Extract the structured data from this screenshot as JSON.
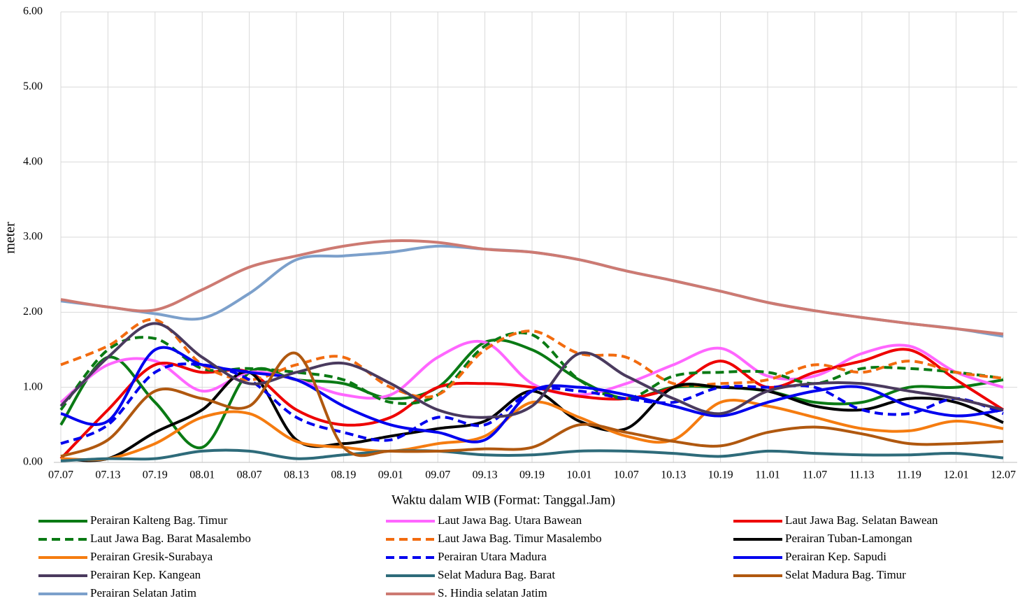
{
  "chart_data": {
    "type": "line",
    "y_label": "meter",
    "x_label": "Waktu dalam WIB (Format: Tanggal.Jam)",
    "categories": [
      "07.07",
      "07.13",
      "07.19",
      "08.01",
      "08.07",
      "08.13",
      "08.19",
      "09.01",
      "09.07",
      "09.13",
      "09.19",
      "10.01",
      "10.07",
      "10.13",
      "10.19",
      "11.01",
      "11.07",
      "11.13",
      "11.19",
      "12.01",
      "12.07"
    ],
    "ylim": [
      0,
      6
    ],
    "yticks": [
      {
        "value": 0,
        "label": "0.00"
      },
      {
        "value": 1,
        "label": "1.00"
      },
      {
        "value": 2,
        "label": "2.00"
      },
      {
        "value": 3,
        "label": "3.00"
      },
      {
        "value": 4,
        "label": "4.00"
      },
      {
        "value": 5,
        "label": "5.00"
      },
      {
        "value": 6,
        "label": "6.00"
      }
    ],
    "grid": true,
    "smooth": true,
    "series": [
      {
        "name": "Perairan Kalteng Bag. Timur",
        "color": "#0a7a14",
        "dash": false,
        "values": [
          0.5,
          1.4,
          0.8,
          0.2,
          1.2,
          1.1,
          1.05,
          0.85,
          1.0,
          1.6,
          1.5,
          1.1,
          0.85,
          1.0,
          1.0,
          0.95,
          0.8,
          0.8,
          1.0,
          1.0,
          1.1
        ]
      },
      {
        "name": "Laut Jawa Bag. Utara Bawean",
        "color": "#ff66ff",
        "dash": false,
        "values": [
          0.8,
          1.3,
          1.35,
          0.95,
          1.2,
          1.1,
          0.9,
          0.9,
          1.4,
          1.6,
          1.05,
          0.9,
          1.05,
          1.3,
          1.52,
          1.15,
          1.15,
          1.45,
          1.55,
          1.2,
          1.0
        ]
      },
      {
        "name": "Laut Jawa Bag. Selatan Bawean",
        "color": "#ee0000",
        "dash": false,
        "values": [
          0.05,
          0.7,
          1.3,
          1.2,
          1.2,
          0.7,
          0.5,
          0.6,
          1.0,
          1.05,
          1.0,
          0.88,
          0.85,
          1.0,
          1.35,
          1.0,
          1.2,
          1.35,
          1.5,
          1.1,
          0.7
        ]
      },
      {
        "name": "Laut Jawa Bag. Barat Masalembo",
        "color": "#0a7a14",
        "dash": true,
        "values": [
          0.7,
          1.5,
          1.65,
          1.25,
          1.25,
          1.2,
          1.1,
          0.8,
          0.9,
          1.55,
          1.7,
          1.1,
          0.85,
          1.15,
          1.2,
          1.2,
          1.05,
          1.25,
          1.25,
          1.2,
          1.12
        ]
      },
      {
        "name": "Laut Jawa Bag. Timur Masalembo",
        "color": "#f26b0f",
        "dash": true,
        "values": [
          1.3,
          1.55,
          1.9,
          1.3,
          1.1,
          1.3,
          1.4,
          1.0,
          0.9,
          1.5,
          1.75,
          1.45,
          1.4,
          1.05,
          1.05,
          1.1,
          1.3,
          1.2,
          1.35,
          1.2,
          1.12
        ]
      },
      {
        "name": "Perairan Tuban-Lamongan",
        "color": "#000000",
        "dash": false,
        "values": [
          0.05,
          0.05,
          0.4,
          0.7,
          1.2,
          0.3,
          0.25,
          0.35,
          0.45,
          0.55,
          0.95,
          0.55,
          0.45,
          1.0,
          1.0,
          0.95,
          0.75,
          0.7,
          0.85,
          0.8,
          0.53
        ]
      },
      {
        "name": "Perairan Gresik-Surabaya",
        "color": "#f57c10",
        "dash": false,
        "values": [
          0.05,
          0.05,
          0.25,
          0.6,
          0.65,
          0.28,
          0.2,
          0.15,
          0.25,
          0.35,
          0.8,
          0.6,
          0.35,
          0.3,
          0.8,
          0.75,
          0.6,
          0.45,
          0.42,
          0.55,
          0.45
        ]
      },
      {
        "name": "Perairan Utara Madura",
        "color": "#0000ee",
        "dash": true,
        "values": [
          0.25,
          0.5,
          1.2,
          1.3,
          1.1,
          0.6,
          0.4,
          0.3,
          0.6,
          0.5,
          0.95,
          0.95,
          0.85,
          0.8,
          1.0,
          1.0,
          1.0,
          0.7,
          0.65,
          0.85,
          0.65
        ]
      },
      {
        "name": "Perairan Kep. Sapudi",
        "color": "#0000ee",
        "dash": false,
        "values": [
          0.65,
          0.55,
          1.5,
          1.3,
          1.2,
          1.1,
          0.75,
          0.5,
          0.4,
          0.3,
          0.95,
          1.0,
          0.9,
          0.75,
          0.62,
          0.8,
          0.95,
          1.0,
          0.75,
          0.62,
          0.7
        ]
      },
      {
        "name": "Perairan Kep. Kangean",
        "color": "#4a3a5e",
        "dash": false,
        "values": [
          0.75,
          1.4,
          1.85,
          1.4,
          1.05,
          1.2,
          1.32,
          1.05,
          0.7,
          0.6,
          0.75,
          1.45,
          1.15,
          0.85,
          0.65,
          0.95,
          1.05,
          1.05,
          0.95,
          0.85,
          0.7
        ]
      },
      {
        "name": "Selat Madura Bag. Barat",
        "color": "#2e6b7a",
        "dash": false,
        "values": [
          0.02,
          0.05,
          0.05,
          0.15,
          0.15,
          0.05,
          0.1,
          0.15,
          0.15,
          0.1,
          0.1,
          0.15,
          0.15,
          0.12,
          0.08,
          0.15,
          0.12,
          0.1,
          0.1,
          0.12,
          0.06
        ]
      },
      {
        "name": "Selat Madura Bag. Timur",
        "color": "#b0580f",
        "dash": false,
        "values": [
          0.08,
          0.3,
          0.95,
          0.85,
          0.75,
          1.45,
          0.2,
          0.15,
          0.15,
          0.18,
          0.2,
          0.5,
          0.4,
          0.28,
          0.22,
          0.4,
          0.47,
          0.38,
          0.25,
          0.25,
          0.28
        ]
      },
      {
        "name": "Perairan Selatan Jatim",
        "color": "#7ca0cb",
        "dash": false,
        "values": [
          2.15,
          2.07,
          1.98,
          1.92,
          2.25,
          2.7,
          2.75,
          2.8,
          2.88,
          2.84,
          2.8,
          2.7,
          2.55,
          2.42,
          2.28,
          2.13,
          2.02,
          1.93,
          1.85,
          1.78,
          1.68
        ]
      },
      {
        "name": "S. Hindia selatan Jatim",
        "color": "#cd7a72",
        "dash": false,
        "values": [
          2.17,
          2.07,
          2.03,
          2.3,
          2.6,
          2.75,
          2.88,
          2.95,
          2.93,
          2.84,
          2.8,
          2.7,
          2.55,
          2.42,
          2.28,
          2.13,
          2.02,
          1.93,
          1.85,
          1.78,
          1.71
        ]
      }
    ]
  }
}
